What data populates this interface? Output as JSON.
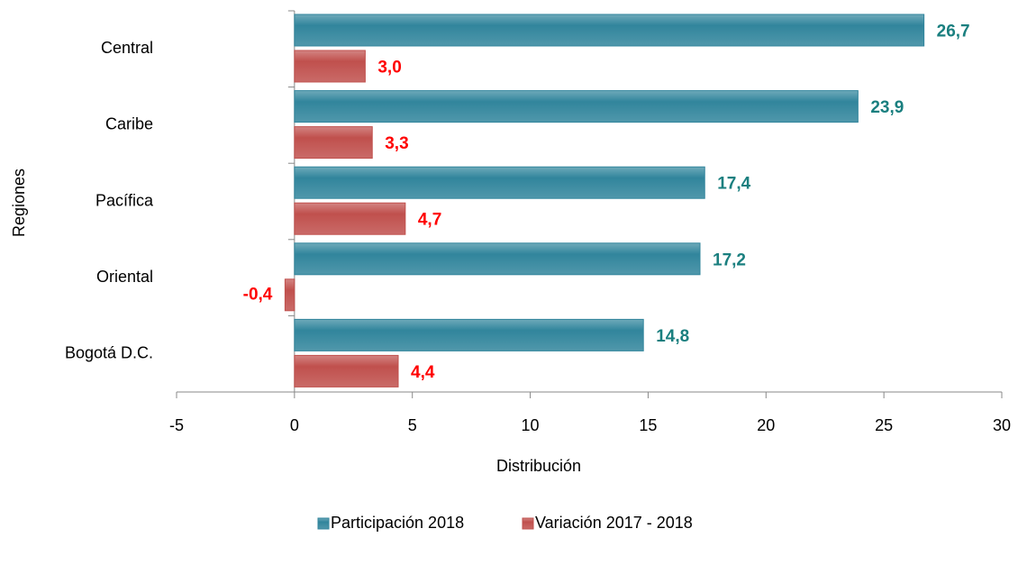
{
  "chart_data": {
    "type": "bar",
    "orientation": "horizontal",
    "x_label": "Distribución",
    "y_label": "Regiones",
    "categories": [
      "Central",
      "Caribe",
      "Pacífica",
      "Oriental",
      "Bogotá D.C."
    ],
    "series": [
      {
        "name": "Participación 2018",
        "color": "#31859c",
        "label_color": "#1a7f7f",
        "values": [
          26.7,
          23.9,
          17.4,
          17.2,
          14.8
        ],
        "value_labels": [
          "26,7",
          "23,9",
          "17,4",
          "17,2",
          "14,8"
        ]
      },
      {
        "name": "Variación 2017 - 2018",
        "color": "#c0504d",
        "label_color": "#ff0000",
        "values": [
          3.0,
          3.3,
          4.7,
          -0.4,
          4.4
        ],
        "value_labels": [
          "3,0",
          "3,3",
          "4,7",
          "-0,4",
          "4,4"
        ]
      }
    ],
    "xlim": [
      -5,
      30
    ],
    "xticks": [
      -5,
      0,
      5,
      10,
      15,
      20,
      25,
      30
    ],
    "legend": "bottom"
  }
}
